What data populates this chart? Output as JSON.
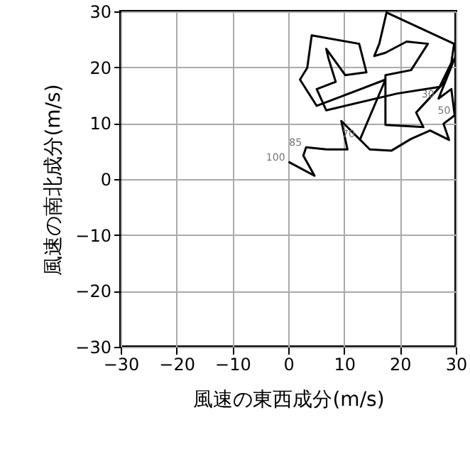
{
  "chart_data": {
    "type": "line",
    "xlabel": "風速の東西成分(m/s)",
    "ylabel": "風速の南北成分(m/s)",
    "x": [
      0.2,
      4.7,
      2.7,
      3.2,
      6.9,
      10.6,
      9.5,
      12.7,
      14.6,
      18.5,
      22.0,
      25.4,
      28.8,
      27.8,
      29.8,
      29.2,
      26.9,
      29.8,
      28.0,
      22.9,
      24.2,
      17.4,
      17.4,
      22.0,
      25.0,
      21.2,
      17.4,
      15.4,
      16.3,
      17.6,
      29.7,
      29.2,
      27.1,
      19.5,
      6.8,
      5.1,
      8.5,
      7.2,
      6.8,
      10.2,
      14.0,
      12.7,
      4.2,
      3.4,
      2.1,
      5.1,
      17.4,
      12.9
    ],
    "series": [
      {
        "color": "#000000",
        "values": [
          3.0,
          0.6,
          4.2,
          5.7,
          5.3,
          5.3,
          10.4,
          7.2,
          5.3,
          5.1,
          7.2,
          8.7,
          7.0,
          9.9,
          11.4,
          16.1,
          14.4,
          21.6,
          17.4,
          11.9,
          9.3,
          9.7,
          18.6,
          19.5,
          24.2,
          24.6,
          22.6,
          22.0,
          24.2,
          29.8,
          24.2,
          20.8,
          16.5,
          15.3,
          12.3,
          16.1,
          17.4,
          21.6,
          23.3,
          18.6,
          19.1,
          24.2,
          25.7,
          19.9,
          17.8,
          13.1,
          17.8,
          7.2
        ]
      }
    ],
    "annotations": [
      {
        "text": "100",
        "x": 0.2,
        "y": 3.0
      },
      {
        "text": "85",
        "x": 3.2,
        "y": 5.7
      },
      {
        "text": "70",
        "x": 12.7,
        "y": 7.2
      },
      {
        "text": "50",
        "x": 29.8,
        "y": 11.4
      },
      {
        "text": "30",
        "x": 26.9,
        "y": 14.4
      }
    ],
    "xlim": [
      -30,
      30
    ],
    "ylim": [
      -30,
      30
    ],
    "xticks": [
      -30,
      -20,
      -10,
      0,
      10,
      20,
      30
    ],
    "yticks": [
      -30,
      -20,
      -10,
      0,
      10,
      20,
      30
    ],
    "grid": true,
    "marker": "none",
    "line_style": "solid"
  }
}
